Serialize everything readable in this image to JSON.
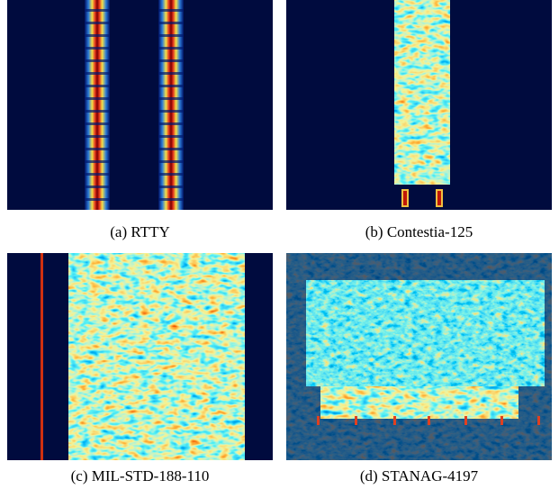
{
  "figure": {
    "panels": [
      {
        "caption": "(a) RTTY"
      },
      {
        "caption": "(b) Contestia-125"
      },
      {
        "caption": "(c) MIL-STD-188-110"
      },
      {
        "caption": "(d) STANAG-4197"
      }
    ]
  }
}
